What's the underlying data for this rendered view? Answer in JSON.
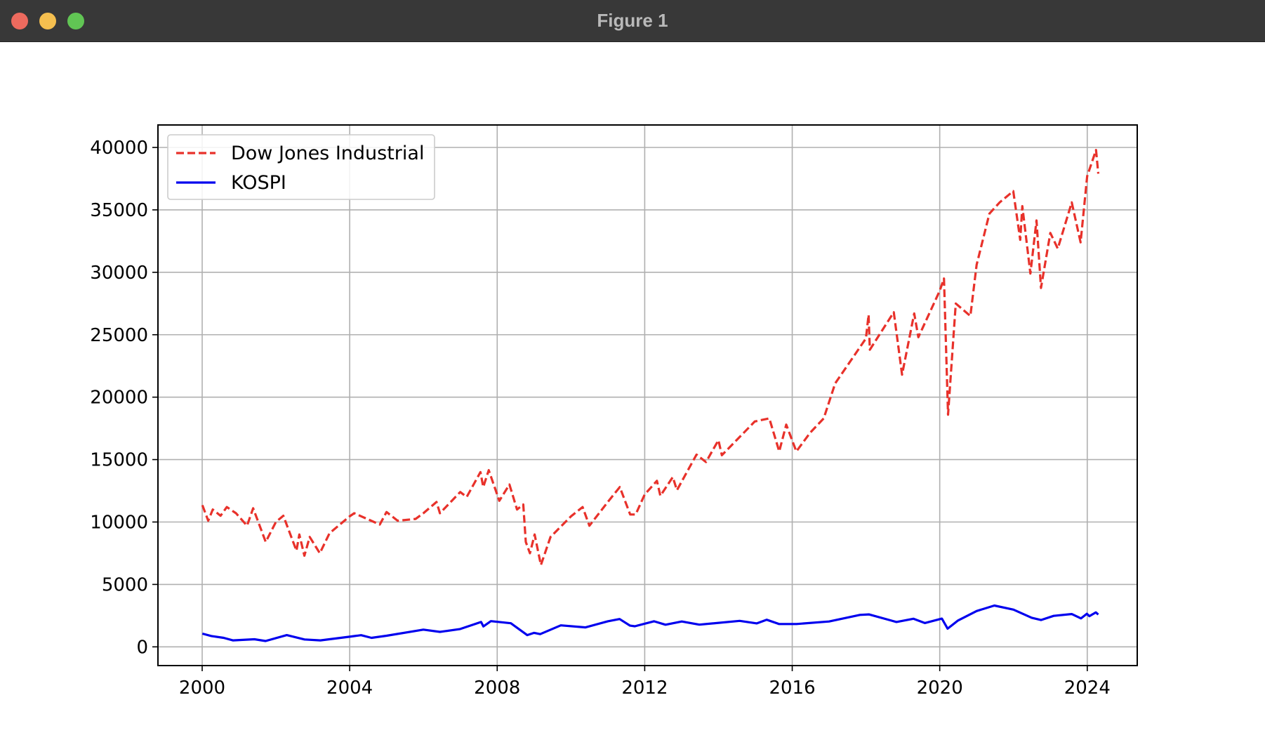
{
  "window": {
    "title": "Figure 1",
    "buttons": [
      "close",
      "minimize",
      "zoom"
    ]
  },
  "chart_data": {
    "type": "line",
    "title": "",
    "xlabel": "",
    "ylabel": "",
    "xlim": [
      "1998-10-20",
      "2025-05-10"
    ],
    "ylim": [
      -1500,
      41800
    ],
    "x_ticks": [
      "2000",
      "2004",
      "2008",
      "2012",
      "2016",
      "2020",
      "2024"
    ],
    "y_ticks": [
      0,
      5000,
      10000,
      15000,
      20000,
      25000,
      30000,
      35000,
      40000
    ],
    "grid": true,
    "legend": "top-left",
    "series": [
      {
        "name": "Dow Jones Industrial",
        "color": "#e8312a",
        "linestyle": "dashed",
        "points": [
          [
            "2000-01-03",
            11350
          ],
          [
            "2000-03-01",
            10100
          ],
          [
            "2000-04-15",
            11000
          ],
          [
            "2000-07-01",
            10500
          ],
          [
            "2000-09-01",
            11200
          ],
          [
            "2000-12-01",
            10700
          ],
          [
            "2001-03-20",
            9700
          ],
          [
            "2001-05-20",
            11100
          ],
          [
            "2001-09-21",
            8400
          ],
          [
            "2001-12-31",
            10000
          ],
          [
            "2002-03-15",
            10500
          ],
          [
            "2002-07-23",
            7700
          ],
          [
            "2002-08-20",
            9000
          ],
          [
            "2002-10-09",
            7300
          ],
          [
            "2002-12-01",
            8800
          ],
          [
            "2003-03-11",
            7500
          ],
          [
            "2003-06-15",
            9100
          ],
          [
            "2003-12-31",
            10450
          ],
          [
            "2004-02-15",
            10700
          ],
          [
            "2004-10-25",
            9800
          ],
          [
            "2004-12-31",
            10800
          ],
          [
            "2005-04-20",
            10100
          ],
          [
            "2005-10-15",
            10250
          ],
          [
            "2005-12-31",
            10700
          ],
          [
            "2006-05-10",
            11600
          ],
          [
            "2006-06-13",
            10700
          ],
          [
            "2006-12-31",
            12400
          ],
          [
            "2007-03-05",
            12000
          ],
          [
            "2007-07-19",
            14000
          ],
          [
            "2007-08-16",
            12800
          ],
          [
            "2007-10-09",
            14150
          ],
          [
            "2008-01-22",
            11700
          ],
          [
            "2008-05-01",
            13000
          ],
          [
            "2008-07-15",
            11000
          ],
          [
            "2008-09-15",
            11400
          ],
          [
            "2008-10-10",
            8400
          ],
          [
            "2008-11-20",
            7500
          ],
          [
            "2009-01-06",
            9000
          ],
          [
            "2009-03-09",
            6550
          ],
          [
            "2009-06-12",
            8800
          ],
          [
            "2009-12-31",
            10450
          ],
          [
            "2010-04-26",
            11200
          ],
          [
            "2010-07-02",
            9700
          ],
          [
            "2010-12-31",
            11600
          ],
          [
            "2011-04-29",
            12800
          ],
          [
            "2011-08-10",
            10600
          ],
          [
            "2011-10-03",
            10600
          ],
          [
            "2011-12-31",
            12200
          ],
          [
            "2012-05-01",
            13300
          ],
          [
            "2012-06-04",
            12100
          ],
          [
            "2012-10-05",
            13600
          ],
          [
            "2012-11-15",
            12550
          ],
          [
            "2013-05-28",
            15400
          ],
          [
            "2013-08-30",
            14800
          ],
          [
            "2013-12-31",
            16550
          ],
          [
            "2014-02-03",
            15350
          ],
          [
            "2014-12-26",
            18050
          ],
          [
            "2015-05-19",
            18300
          ],
          [
            "2015-08-25",
            15650
          ],
          [
            "2015-11-03",
            17800
          ],
          [
            "2016-02-11",
            15650
          ],
          [
            "2016-06-27",
            17150
          ],
          [
            "2016-11-08",
            18300
          ],
          [
            "2017-03-01",
            21100
          ],
          [
            "2017-12-31",
            24700
          ],
          [
            "2018-01-26",
            26600
          ],
          [
            "2018-02-08",
            23800
          ],
          [
            "2018-10-03",
            26800
          ],
          [
            "2018-12-24",
            21800
          ],
          [
            "2019-04-23",
            26700
          ],
          [
            "2019-06-03",
            24800
          ],
          [
            "2019-12-31",
            28500
          ],
          [
            "2020-02-12",
            29500
          ],
          [
            "2020-03-23",
            18600
          ],
          [
            "2020-06-08",
            27500
          ],
          [
            "2020-10-30",
            26500
          ],
          [
            "2020-12-31",
            30600
          ],
          [
            "2021-05-07",
            34700
          ],
          [
            "2021-08-16",
            35600
          ],
          [
            "2021-12-29",
            36500
          ],
          [
            "2022-03-08",
            32600
          ],
          [
            "2022-03-29",
            35300
          ],
          [
            "2022-06-17",
            29900
          ],
          [
            "2022-08-16",
            34150
          ],
          [
            "2022-09-30",
            28750
          ],
          [
            "2022-12-31",
            33150
          ],
          [
            "2023-03-15",
            31900
          ],
          [
            "2023-07-31",
            35600
          ],
          [
            "2023-10-27",
            32400
          ],
          [
            "2023-12-31",
            37700
          ],
          [
            "2024-03-28",
            39800
          ],
          [
            "2024-04-19",
            37900
          ]
        ]
      },
      {
        "name": "KOSPI",
        "color": "#0000ee",
        "linestyle": "solid",
        "points": [
          [
            "2000-01-03",
            1060
          ],
          [
            "2000-04-01",
            870
          ],
          [
            "2000-08-01",
            720
          ],
          [
            "2000-10-31",
            520
          ],
          [
            "2001-06-01",
            610
          ],
          [
            "2001-09-20",
            470
          ],
          [
            "2002-04-18",
            940
          ],
          [
            "2002-10-11",
            590
          ],
          [
            "2003-03-17",
            520
          ],
          [
            "2003-12-31",
            810
          ],
          [
            "2004-04-23",
            935
          ],
          [
            "2004-08-04",
            720
          ],
          [
            "2004-12-31",
            890
          ],
          [
            "2005-12-31",
            1380
          ],
          [
            "2006-06-13",
            1200
          ],
          [
            "2006-12-31",
            1430
          ],
          [
            "2007-07-25",
            1990
          ],
          [
            "2007-08-17",
            1640
          ],
          [
            "2007-10-31",
            2060
          ],
          [
            "2008-05-15",
            1890
          ],
          [
            "2008-10-24",
            940
          ],
          [
            "2008-12-31",
            1120
          ],
          [
            "2009-03-02",
            1020
          ],
          [
            "2009-09-22",
            1720
          ],
          [
            "2010-05-25",
            1560
          ],
          [
            "2010-12-31",
            2050
          ],
          [
            "2011-04-27",
            2230
          ],
          [
            "2011-08-09",
            1700
          ],
          [
            "2011-09-26",
            1650
          ],
          [
            "2012-04-02",
            2050
          ],
          [
            "2012-07-25",
            1770
          ],
          [
            "2013-01-02",
            2030
          ],
          [
            "2013-06-25",
            1780
          ],
          [
            "2014-07-30",
            2080
          ],
          [
            "2015-01-15",
            1880
          ],
          [
            "2015-04-23",
            2170
          ],
          [
            "2015-08-24",
            1830
          ],
          [
            "2016-02-12",
            1830
          ],
          [
            "2016-12-31",
            2030
          ],
          [
            "2017-11-02",
            2560
          ],
          [
            "2018-01-29",
            2600
          ],
          [
            "2018-10-29",
            1990
          ],
          [
            "2019-04-15",
            2250
          ],
          [
            "2019-08-06",
            1910
          ],
          [
            "2020-01-22",
            2260
          ],
          [
            "2020-03-19",
            1460
          ],
          [
            "2020-06-30",
            2110
          ],
          [
            "2020-12-31",
            2870
          ],
          [
            "2021-06-25",
            3310
          ],
          [
            "2021-12-31",
            2980
          ],
          [
            "2022-06-30",
            2330
          ],
          [
            "2022-09-30",
            2150
          ],
          [
            "2023-02-02",
            2480
          ],
          [
            "2023-07-31",
            2630
          ],
          [
            "2023-10-31",
            2280
          ],
          [
            "2023-12-28",
            2650
          ],
          [
            "2024-01-22",
            2460
          ],
          [
            "2024-03-26",
            2760
          ],
          [
            "2024-04-19",
            2590
          ]
        ]
      }
    ]
  }
}
